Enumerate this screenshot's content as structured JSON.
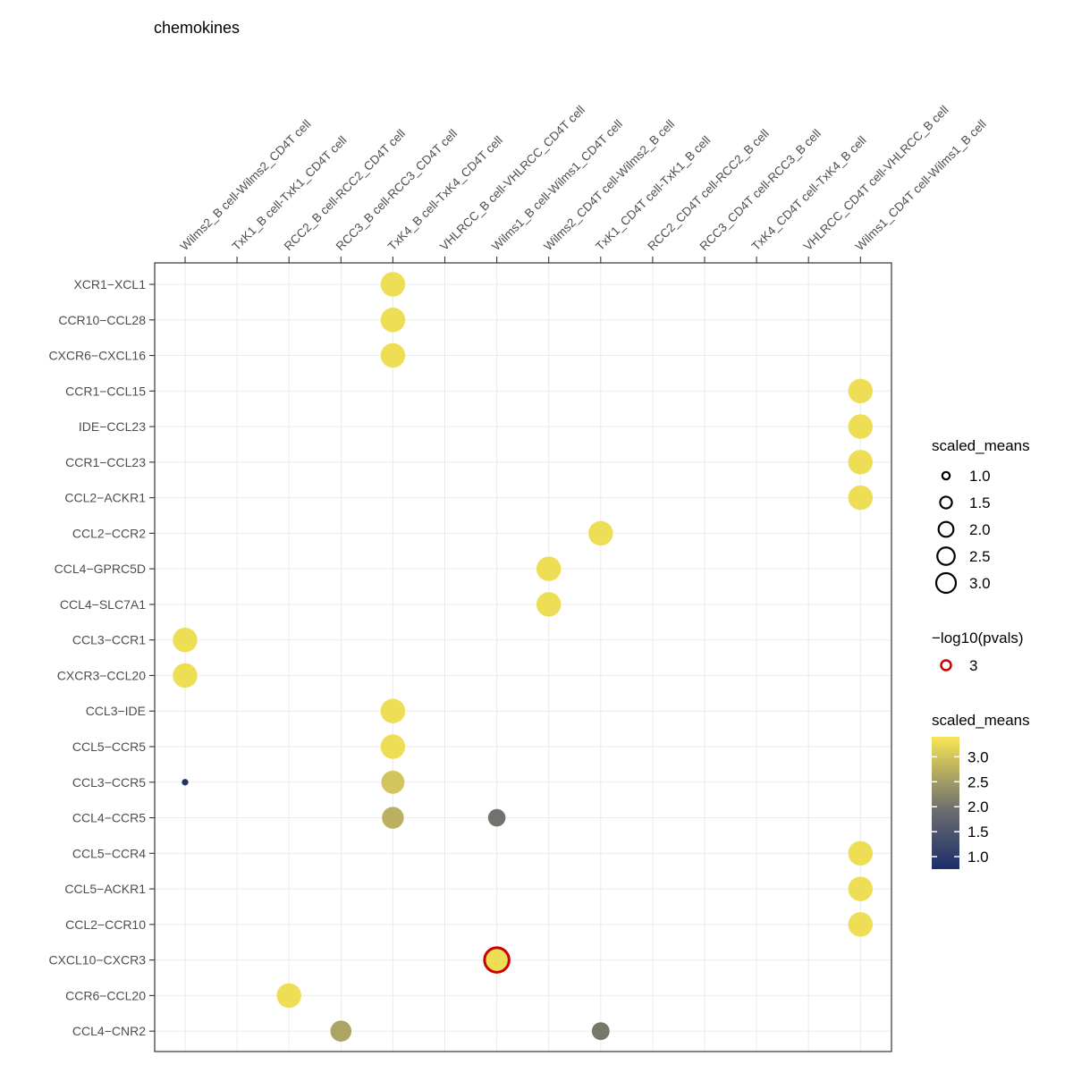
{
  "chart_data": {
    "type": "scatter",
    "title": "chemokines",
    "x_categories": [
      "Wilms2_B cell-Wilms2_CD4T cell",
      "TxK1_B cell-TxK1_CD4T cell",
      "RCC2_B cell-RCC2_CD4T cell",
      "RCC3_B cell-RCC3_CD4T cell",
      "TxK4_B cell-TxK4_CD4T cell",
      "VHLRCC_B cell-VHLRCC_CD4T cell",
      "Wilms1_B cell-Wilms1_CD4T cell",
      "Wilms2_CD4T cell-Wilms2_B cell",
      "TxK1_CD4T cell-TxK1_B cell",
      "RCC2_CD4T cell-RCC2_B cell",
      "RCC3_CD4T cell-RCC3_B cell",
      "TxK4_CD4T cell-TxK4_B cell",
      "VHLRCC_CD4T cell-VHLRCC_B cell",
      "Wilms1_CD4T cell-Wilms1_B cell"
    ],
    "y_categories": [
      "XCR1−XCL1",
      "CCR10−CCL28",
      "CXCR6−CXCL16",
      "CCR1−CCL15",
      "IDE−CCL23",
      "CCR1−CCL23",
      "CCL2−ACKR1",
      "CCL2−CCR2",
      "CCL4−GPRC5D",
      "CCL4−SLC7A1",
      "CCL3−CCR1",
      "CXCR3−CCL20",
      "CCL3−IDE",
      "CCL5−CCR5",
      "CCL3−CCR5",
      "CCL4−CCR5",
      "CCL5−CCR4",
      "CCL5−ACKR1",
      "CCL2−CCR10",
      "CXCL10−CXCR3",
      "CCR6−CCL20",
      "CCL4−CNR2"
    ],
    "points": [
      {
        "x": 4,
        "y": 0,
        "scaled_means": 3.3,
        "log10p": 0
      },
      {
        "x": 4,
        "y": 1,
        "scaled_means": 3.3,
        "log10p": 0
      },
      {
        "x": 4,
        "y": 2,
        "scaled_means": 3.3,
        "log10p": 0
      },
      {
        "x": 13,
        "y": 3,
        "scaled_means": 3.3,
        "log10p": 0
      },
      {
        "x": 13,
        "y": 4,
        "scaled_means": 3.3,
        "log10p": 0
      },
      {
        "x": 13,
        "y": 5,
        "scaled_means": 3.3,
        "log10p": 0
      },
      {
        "x": 13,
        "y": 6,
        "scaled_means": 3.3,
        "log10p": 0
      },
      {
        "x": 8,
        "y": 7,
        "scaled_means": 3.3,
        "log10p": 0
      },
      {
        "x": 7,
        "y": 8,
        "scaled_means": 3.3,
        "log10p": 0
      },
      {
        "x": 7,
        "y": 9,
        "scaled_means": 3.3,
        "log10p": 0
      },
      {
        "x": 0,
        "y": 10,
        "scaled_means": 3.3,
        "log10p": 0
      },
      {
        "x": 0,
        "y": 11,
        "scaled_means": 3.3,
        "log10p": 0
      },
      {
        "x": 4,
        "y": 12,
        "scaled_means": 3.3,
        "log10p": 0
      },
      {
        "x": 4,
        "y": 13,
        "scaled_means": 3.3,
        "log10p": 0
      },
      {
        "x": 0,
        "y": 14,
        "scaled_means": 0.85,
        "log10p": 0
      },
      {
        "x": 4,
        "y": 14,
        "scaled_means": 3.0,
        "log10p": 0
      },
      {
        "x": 4,
        "y": 15,
        "scaled_means": 2.75,
        "log10p": 0
      },
      {
        "x": 6,
        "y": 15,
        "scaled_means": 2.0,
        "log10p": 0
      },
      {
        "x": 13,
        "y": 16,
        "scaled_means": 3.3,
        "log10p": 0
      },
      {
        "x": 13,
        "y": 17,
        "scaled_means": 3.3,
        "log10p": 0
      },
      {
        "x": 13,
        "y": 18,
        "scaled_means": 3.3,
        "log10p": 0
      },
      {
        "x": 6,
        "y": 19,
        "scaled_means": 3.3,
        "log10p": 3
      },
      {
        "x": 2,
        "y": 20,
        "scaled_means": 3.3,
        "log10p": 0
      },
      {
        "x": 3,
        "y": 21,
        "scaled_means": 2.6,
        "log10p": 0
      },
      {
        "x": 8,
        "y": 21,
        "scaled_means": 2.05,
        "log10p": 0
      }
    ],
    "legend_size": {
      "title": "scaled_means",
      "labels": [
        "1.0",
        "1.5",
        "2.0",
        "2.5",
        "3.0"
      ],
      "values": [
        1.0,
        1.5,
        2.0,
        2.5,
        3.0
      ]
    },
    "legend_pval": {
      "title": "−log10(pvals)",
      "labels": [
        "3"
      ],
      "color": "#cc0000"
    },
    "legend_color": {
      "title": "scaled_means",
      "labels": [
        "3.0",
        "2.5",
        "2.0",
        "1.5",
        "1.0"
      ],
      "values": [
        3.0,
        2.5,
        2.0,
        1.5,
        1.0
      ],
      "range": [
        0.75,
        3.4
      ],
      "low_color": "#1a2e6b",
      "mid_color": "#6e6e6e",
      "high_color": "#f7e654"
    },
    "size_range": [
      0.75,
      3.4
    ],
    "grid": true,
    "legend_position": "right"
  }
}
